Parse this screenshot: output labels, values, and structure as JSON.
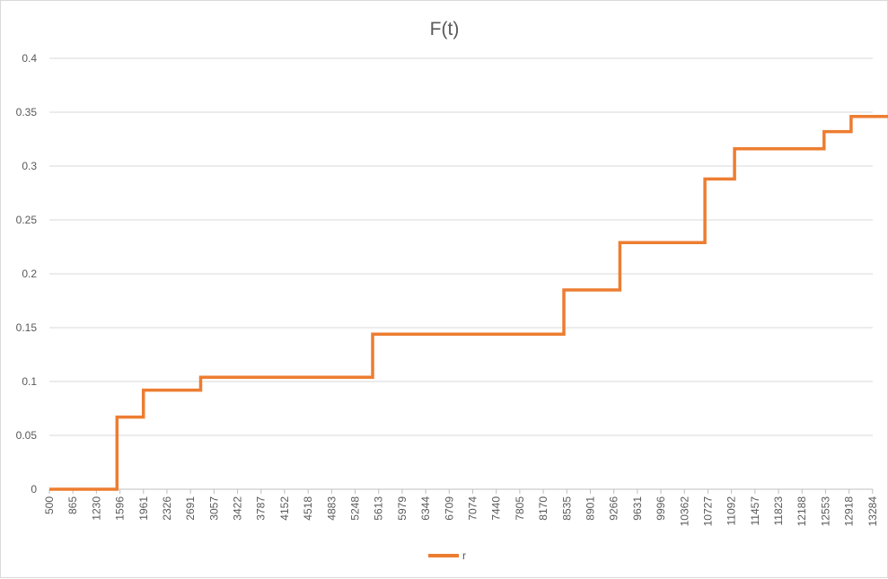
{
  "chart_data": {
    "type": "line",
    "title": "F(t)",
    "xlabel": "",
    "ylabel": "",
    "ylim": [
      0,
      0.4
    ],
    "y_ticks": [
      "0",
      "0.05",
      "0.1",
      "0.15",
      "0.2",
      "0.25",
      "0.3",
      "0.35",
      "0.4"
    ],
    "grid": true,
    "legend_position": "bottom",
    "x_scale": "category",
    "x_first": 500,
    "x_step": 91.33,
    "x_count": 141,
    "x_tick_labels": [
      "500",
      "865",
      "1230",
      "1596",
      "1961",
      "2326",
      "2691",
      "3057",
      "3422",
      "3787",
      "4152",
      "4518",
      "4883",
      "5248",
      "5613",
      "5979",
      "6344",
      "6709",
      "7074",
      "7440",
      "7805",
      "8170",
      "8535",
      "8901",
      "9266",
      "9631",
      "9996",
      "10362",
      "10727",
      "11092",
      "11457",
      "11823",
      "12188",
      "12553",
      "12918",
      "13284"
    ],
    "series": [
      {
        "name": "r",
        "color": "#ed7d31",
        "line_shape": "step",
        "steps": [
          {
            "x": 500,
            "y": 0
          },
          {
            "x": 1550,
            "y": 0.067
          },
          {
            "x": 1960,
            "y": 0.092
          },
          {
            "x": 2850,
            "y": 0.104
          },
          {
            "x": 5520,
            "y": 0.144
          },
          {
            "x": 8490,
            "y": 0.185
          },
          {
            "x": 9360,
            "y": 0.229
          },
          {
            "x": 10680,
            "y": 0.288
          },
          {
            "x": 11140,
            "y": 0.316
          },
          {
            "x": 12530,
            "y": 0.332
          },
          {
            "x": 12950,
            "y": 0.346
          },
          {
            "x": 13550,
            "y": 0.362
          }
        ],
        "x_end": 13550
      }
    ]
  }
}
